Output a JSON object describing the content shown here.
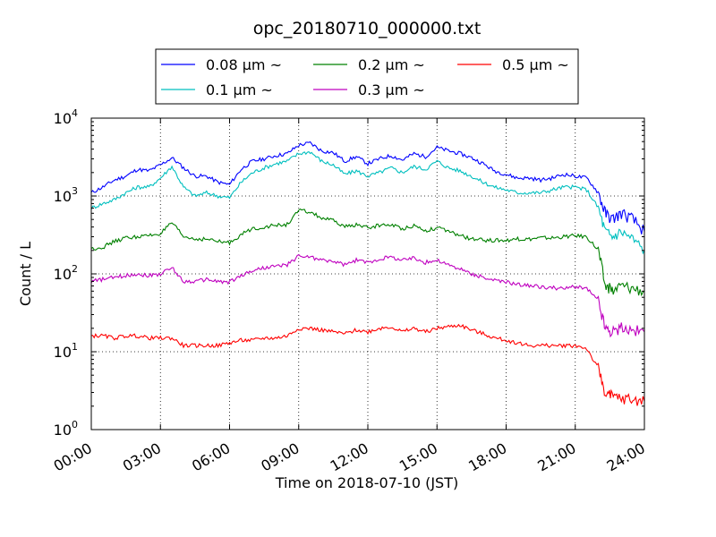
{
  "chart_data": {
    "type": "line",
    "title": "opc_20180710_000000.txt",
    "xlabel": "Time on 2018-07-10 (JST)",
    "ylabel": "Count / L",
    "x_unit": "hours (JST)",
    "xlim": [
      0,
      24
    ],
    "ylim": [
      1,
      10000
    ],
    "y_scale": "log",
    "grid": true,
    "legend_position": "top-center",
    "x_ticks": [
      "00:00",
      "03:00",
      "06:00",
      "09:00",
      "12:00",
      "15:00",
      "18:00",
      "21:00",
      "24:00"
    ],
    "y_ticks": [
      {
        "base": "10",
        "exp": "0"
      },
      {
        "base": "10",
        "exp": "1"
      },
      {
        "base": "10",
        "exp": "2"
      },
      {
        "base": "10",
        "exp": "3"
      },
      {
        "base": "10",
        "exp": "4"
      }
    ],
    "x": [
      0.0,
      0.5,
      1.0,
      1.5,
      2.0,
      2.5,
      3.0,
      3.5,
      4.0,
      4.5,
      5.0,
      5.5,
      6.0,
      6.5,
      7.0,
      7.5,
      8.0,
      8.5,
      9.0,
      9.5,
      10.0,
      10.5,
      11.0,
      11.5,
      12.0,
      12.5,
      13.0,
      13.5,
      14.0,
      14.5,
      15.0,
      15.5,
      16.0,
      16.5,
      17.0,
      17.5,
      18.0,
      18.5,
      19.0,
      19.5,
      20.0,
      20.5,
      21.0,
      21.5,
      22.0,
      22.3,
      22.6,
      23.0,
      23.5,
      24.0
    ],
    "series": [
      {
        "name": "0.08 μm ~",
        "color": "#0000ff",
        "values": [
          1100,
          1300,
          1600,
          1800,
          2200,
          2100,
          2500,
          3100,
          2300,
          1800,
          1800,
          1500,
          1400,
          2200,
          2800,
          3000,
          3300,
          3500,
          4500,
          4800,
          3800,
          3600,
          2800,
          3200,
          2600,
          3000,
          3300,
          2900,
          3500,
          3200,
          4200,
          3800,
          3500,
          3100,
          2600,
          2100,
          1900,
          1700,
          1700,
          1600,
          1700,
          1900,
          1800,
          1700,
          1100,
          600,
          500,
          600,
          500,
          350
        ]
      },
      {
        "name": "0.1 μm ~",
        "color": "#00bfbf",
        "values": [
          700,
          800,
          900,
          1100,
          1300,
          1300,
          1700,
          2400,
          1300,
          1000,
          1100,
          1000,
          950,
          1500,
          2000,
          2300,
          2600,
          2800,
          3500,
          3700,
          2800,
          2500,
          1900,
          2100,
          1800,
          2000,
          2300,
          2000,
          2400,
          2200,
          2800,
          2300,
          2100,
          1800,
          1500,
          1300,
          1200,
          1100,
          1100,
          1100,
          1200,
          1300,
          1300,
          1200,
          700,
          350,
          300,
          350,
          280,
          200
        ]
      },
      {
        "name": "0.2 μm ~",
        "color": "#008000",
        "values": [
          210,
          220,
          260,
          290,
          300,
          310,
          330,
          450,
          300,
          280,
          280,
          260,
          250,
          320,
          380,
          400,
          420,
          430,
          650,
          620,
          520,
          480,
          400,
          430,
          390,
          420,
          430,
          380,
          420,
          360,
          390,
          350,
          310,
          280,
          270,
          270,
          270,
          280,
          280,
          290,
          290,
          300,
          310,
          300,
          200,
          70,
          60,
          70,
          65,
          60
        ]
      },
      {
        "name": "0.3 μm ~",
        "color": "#bf00bf",
        "values": [
          80,
          85,
          90,
          95,
          100,
          95,
          100,
          120,
          80,
          80,
          85,
          80,
          78,
          95,
          110,
          120,
          125,
          130,
          170,
          165,
          150,
          145,
          130,
          150,
          140,
          155,
          165,
          150,
          160,
          140,
          150,
          130,
          115,
          100,
          90,
          82,
          78,
          74,
          70,
          68,
          66,
          65,
          68,
          65,
          45,
          20,
          18,
          20,
          19,
          18
        ]
      },
      {
        "name": "0.5 μm ~",
        "color": "#ff0000",
        "values": [
          16,
          16,
          15,
          16,
          16,
          15,
          15,
          15,
          12,
          12,
          12,
          12,
          13,
          14,
          14,
          15,
          15,
          16,
          20,
          20,
          19,
          18,
          17,
          19,
          18,
          20,
          21,
          18,
          20,
          18,
          20,
          21,
          22,
          19,
          17,
          15,
          14,
          13,
          12,
          12,
          12,
          12,
          12,
          11,
          6,
          3,
          2.6,
          2.5,
          2.4,
          2.3
        ]
      }
    ]
  }
}
